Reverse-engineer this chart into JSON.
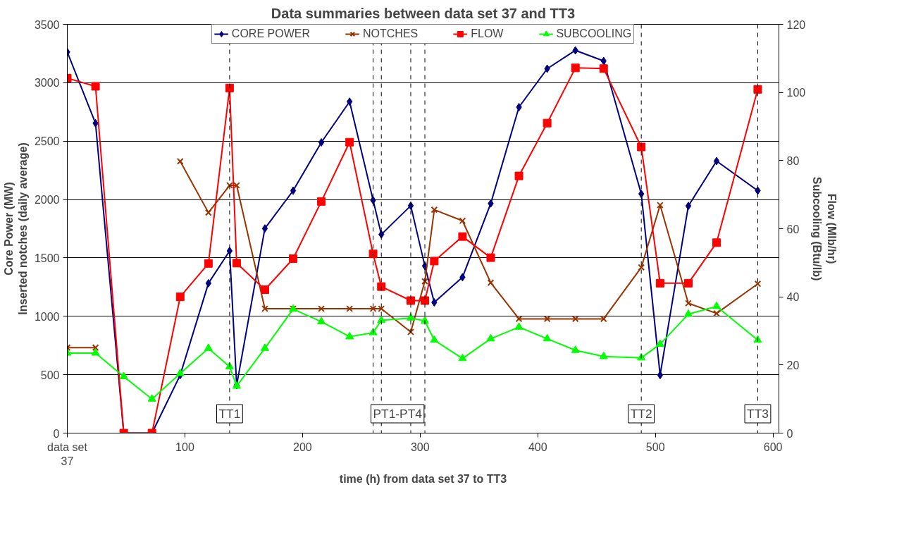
{
  "chart_data": {
    "type": "line",
    "title": "Data summaries between data set 37 and TT3",
    "xlabel": "time (h) from data set 37 to TT3",
    "ylabel": "Core Power (MW)\nInserted notches (daily average)",
    "y2label": "Flow (Mlb/hr)\nSubcooling (Btu/lb)",
    "x": [
      0,
      24,
      48,
      72,
      96,
      120,
      138,
      144,
      168,
      192,
      216,
      240,
      260,
      267,
      292,
      304,
      312,
      336,
      360,
      384,
      408,
      432,
      456,
      488,
      504,
      528,
      552,
      587
    ],
    "series": [
      {
        "name": "CORE POWER",
        "color": "#000080",
        "marker": "diamond",
        "values": [
          3263,
          2653,
          0,
          0,
          497,
          1283,
          1560,
          410,
          1752,
          2076,
          2489,
          2838,
          1994,
          1701,
          1947,
          1431,
          1119,
          1335,
          1966,
          2791,
          3120,
          3277,
          3186,
          2048,
          497,
          1945,
          2329,
          2076
        ]
      },
      {
        "name": "NOTCHES",
        "color": "#993300",
        "marker": "cross",
        "values": [
          732,
          732,
          null,
          null,
          2327,
          1888,
          2121,
          2121,
          1065,
          1065,
          1065,
          1065,
          1065,
          1065,
          866,
          1300,
          1912,
          1818,
          1288,
          978,
          978,
          978,
          978,
          1419,
          1952,
          1112,
          1025,
          1278
        ]
      },
      {
        "name": "FLOW",
        "color": "#ff0000",
        "marker": "square",
        "axis": "y2",
        "values": [
          104.2,
          101.8,
          0,
          0,
          40.0,
          49.8,
          101.3,
          49.9,
          42.1,
          51.2,
          68.0,
          85.4,
          52.6,
          43.0,
          38.9,
          38.9,
          50.5,
          57.7,
          51.5,
          75.5,
          91.0,
          107.2,
          107.0,
          84.0,
          44.0,
          44.0,
          55.9,
          100.9
        ]
      },
      {
        "name": "SUBCOOLING",
        "color": "#00ff00",
        "marker": "triangle",
        "axis": "y2",
        "values": [
          23.5,
          23.5,
          16.6,
          10.0,
          17.5,
          24.9,
          19.5,
          13.8,
          24.9,
          36.4,
          32.7,
          28.3,
          29.5,
          33.1,
          33.8,
          32.9,
          27.3,
          21.9,
          27.7,
          31.1,
          27.7,
          24.3,
          22.5,
          22.1,
          26.1,
          34.9,
          37.2,
          27.3
        ]
      }
    ],
    "xlim": [
      0,
      605
    ],
    "xticks": [
      {
        "value": 0,
        "label": "data set 37"
      },
      100,
      200,
      300,
      400,
      500,
      600
    ],
    "ylim": [
      0,
      3500
    ],
    "yticks": [
      0,
      500,
      1000,
      1500,
      2000,
      2500,
      3000,
      3500
    ],
    "y2lim": [
      0,
      120
    ],
    "y2ticks": [
      0,
      20,
      40,
      60,
      80,
      100,
      120
    ],
    "ref_lines": [
      {
        "axis": "x",
        "value": 138,
        "label": "TT1",
        "line_style": "dashed",
        "color": "#000000"
      },
      {
        "axis": "x",
        "value": 260,
        "label": null,
        "line_style": "dashed",
        "color": "#000000"
      },
      {
        "axis": "x",
        "value": 267,
        "label": null,
        "line_style": "dashed",
        "color": "#000000"
      },
      {
        "axis": "x",
        "value": 292,
        "label": null,
        "line_style": "dashed",
        "color": "#000000"
      },
      {
        "axis": "x",
        "value": 304,
        "label": null,
        "line_style": "dashed",
        "color": "#000000"
      },
      {
        "axis": "x",
        "value": 488,
        "label": "TT2",
        "line_style": "dashed",
        "color": "#000000"
      },
      {
        "axis": "x",
        "value": 587,
        "label": "TT3",
        "line_style": "dashed",
        "color": "#000000"
      }
    ],
    "annotations": [
      "PT1-PT4"
    ],
    "grid": "y",
    "legend": "top",
    "line_style": "solid"
  }
}
